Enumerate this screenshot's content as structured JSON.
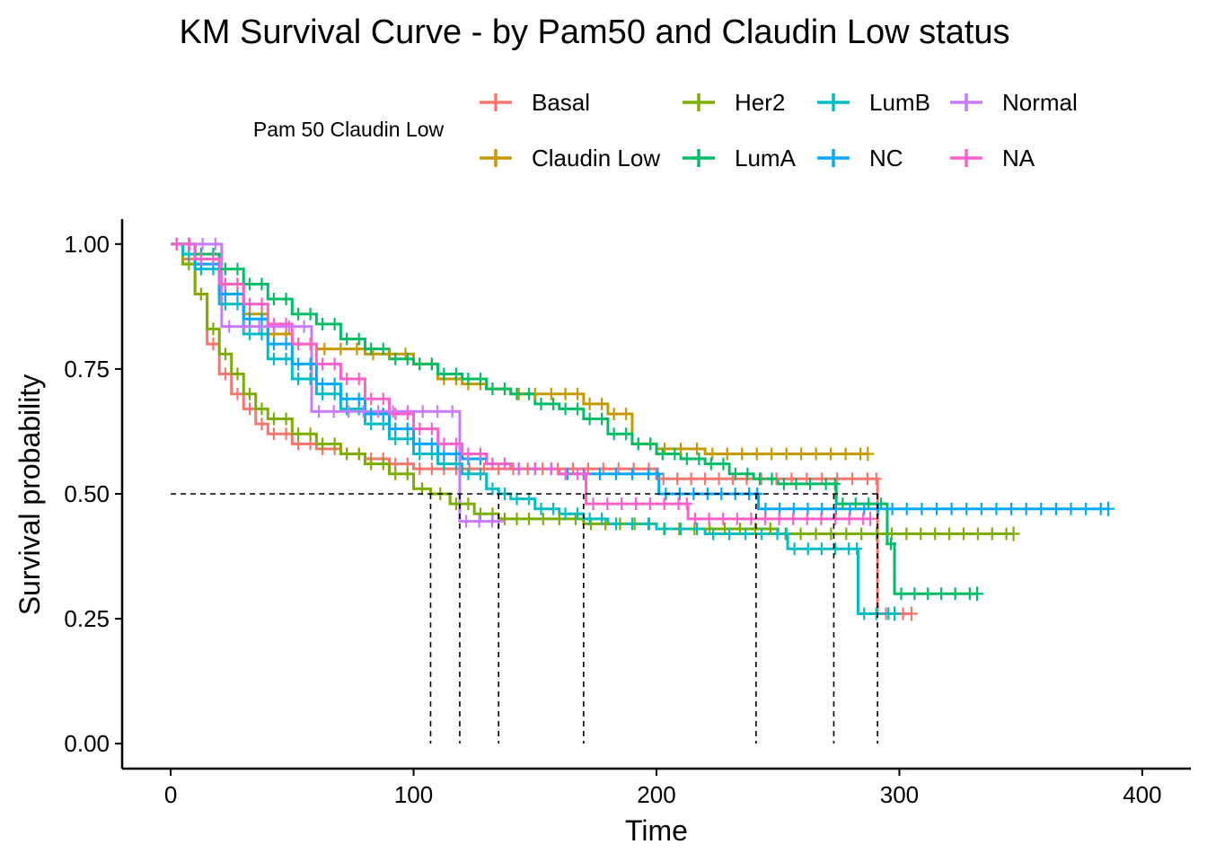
{
  "chart_data": {
    "type": "line",
    "subtype": "kaplan-meier step curves with censor marks",
    "title": "KM Survival Curve - by Pam50 and Claudin Low status",
    "xlabel": "Time",
    "ylabel": "Survival probability",
    "xlim": [
      -20,
      420
    ],
    "ylim": [
      -0.05,
      1.05
    ],
    "x_ticks": [
      0,
      100,
      200,
      300,
      400
    ],
    "y_ticks": [
      0.0,
      0.25,
      0.5,
      0.75,
      1.0
    ],
    "y_tick_labels": [
      "0.00",
      "0.25",
      "0.50",
      "0.75",
      "1.00"
    ],
    "grid": false,
    "legend": {
      "title": "Pam 50 Claudin Low",
      "placement": "top",
      "rows": 2
    },
    "median_line": {
      "y": 0.5,
      "x_end": 291,
      "medians": [
        107,
        119,
        135,
        170,
        241,
        273,
        291
      ]
    },
    "series": [
      {
        "name": "Basal",
        "color": "#F8766D",
        "points": [
          [
            0,
            1.0
          ],
          [
            5,
            0.97
          ],
          [
            10,
            0.9
          ],
          [
            15,
            0.8
          ],
          [
            20,
            0.74
          ],
          [
            25,
            0.7
          ],
          [
            30,
            0.67
          ],
          [
            35,
            0.64
          ],
          [
            40,
            0.62
          ],
          [
            50,
            0.6
          ],
          [
            60,
            0.59
          ],
          [
            70,
            0.58
          ],
          [
            80,
            0.57
          ],
          [
            90,
            0.56
          ],
          [
            100,
            0.55
          ],
          [
            110,
            0.55
          ],
          [
            120,
            0.55
          ],
          [
            150,
            0.55
          ],
          [
            200,
            0.53
          ],
          [
            240,
            0.53
          ],
          [
            290,
            0.53
          ],
          [
            291,
            0.26
          ],
          [
            305,
            0.26
          ]
        ]
      },
      {
        "name": "Claudin Low",
        "color": "#C49A00",
        "points": [
          [
            0,
            1.0
          ],
          [
            10,
            0.97
          ],
          [
            20,
            0.92
          ],
          [
            30,
            0.86
          ],
          [
            40,
            0.82
          ],
          [
            50,
            0.8
          ],
          [
            60,
            0.79
          ],
          [
            80,
            0.78
          ],
          [
            100,
            0.76
          ],
          [
            110,
            0.73
          ],
          [
            120,
            0.72
          ],
          [
            130,
            0.71
          ],
          [
            140,
            0.7
          ],
          [
            160,
            0.7
          ],
          [
            170,
            0.68
          ],
          [
            180,
            0.66
          ],
          [
            190,
            0.6
          ],
          [
            200,
            0.59
          ],
          [
            220,
            0.58
          ],
          [
            287,
            0.58
          ]
        ]
      },
      {
        "name": "Her2",
        "color": "#7CAE00",
        "points": [
          [
            0,
            1.0
          ],
          [
            5,
            0.96
          ],
          [
            10,
            0.9
          ],
          [
            15,
            0.83
          ],
          [
            20,
            0.78
          ],
          [
            25,
            0.74
          ],
          [
            30,
            0.7
          ],
          [
            35,
            0.67
          ],
          [
            40,
            0.65
          ],
          [
            50,
            0.62
          ],
          [
            60,
            0.6
          ],
          [
            70,
            0.58
          ],
          [
            80,
            0.56
          ],
          [
            90,
            0.54
          ],
          [
            100,
            0.51
          ],
          [
            107,
            0.5
          ],
          [
            115,
            0.48
          ],
          [
            125,
            0.46
          ],
          [
            135,
            0.45
          ],
          [
            150,
            0.45
          ],
          [
            170,
            0.44
          ],
          [
            200,
            0.43
          ],
          [
            250,
            0.42
          ],
          [
            300,
            0.42
          ],
          [
            347,
            0.42
          ]
        ]
      },
      {
        "name": "LumA",
        "color": "#00BE67",
        "points": [
          [
            0,
            1.0
          ],
          [
            10,
            0.98
          ],
          [
            20,
            0.95
          ],
          [
            30,
            0.92
          ],
          [
            40,
            0.89
          ],
          [
            50,
            0.86
          ],
          [
            60,
            0.84
          ],
          [
            70,
            0.81
          ],
          [
            80,
            0.79
          ],
          [
            90,
            0.77
          ],
          [
            100,
            0.76
          ],
          [
            110,
            0.74
          ],
          [
            120,
            0.73
          ],
          [
            130,
            0.71
          ],
          [
            140,
            0.7
          ],
          [
            150,
            0.68
          ],
          [
            160,
            0.67
          ],
          [
            170,
            0.65
          ],
          [
            180,
            0.62
          ],
          [
            190,
            0.6
          ],
          [
            200,
            0.58
          ],
          [
            210,
            0.57
          ],
          [
            220,
            0.56
          ],
          [
            230,
            0.54
          ],
          [
            240,
            0.53
          ],
          [
            250,
            0.52
          ],
          [
            260,
            0.52
          ],
          [
            273,
            0.52
          ],
          [
            274,
            0.48
          ],
          [
            290,
            0.48
          ],
          [
            295,
            0.4
          ],
          [
            298,
            0.3
          ],
          [
            320,
            0.3
          ],
          [
            332,
            0.3
          ]
        ]
      },
      {
        "name": "LumB",
        "color": "#00BFC4",
        "points": [
          [
            0,
            1.0
          ],
          [
            5,
            0.98
          ],
          [
            10,
            0.95
          ],
          [
            20,
            0.88
          ],
          [
            30,
            0.82
          ],
          [
            40,
            0.77
          ],
          [
            50,
            0.73
          ],
          [
            60,
            0.7
          ],
          [
            70,
            0.67
          ],
          [
            80,
            0.64
          ],
          [
            90,
            0.61
          ],
          [
            100,
            0.58
          ],
          [
            110,
            0.56
          ],
          [
            120,
            0.54
          ],
          [
            130,
            0.51
          ],
          [
            135,
            0.5
          ],
          [
            140,
            0.49
          ],
          [
            150,
            0.47
          ],
          [
            160,
            0.46
          ],
          [
            170,
            0.45
          ],
          [
            180,
            0.44
          ],
          [
            200,
            0.43
          ],
          [
            220,
            0.42
          ],
          [
            240,
            0.42
          ],
          [
            253,
            0.42
          ],
          [
            254,
            0.39
          ],
          [
            282,
            0.39
          ],
          [
            283,
            0.26
          ],
          [
            298,
            0.26
          ]
        ]
      },
      {
        "name": "NC",
        "color": "#00A9FF",
        "points": [
          [
            0,
            1.0
          ],
          [
            10,
            0.96
          ],
          [
            20,
            0.9
          ],
          [
            30,
            0.85
          ],
          [
            40,
            0.8
          ],
          [
            50,
            0.76
          ],
          [
            60,
            0.72
          ],
          [
            70,
            0.69
          ],
          [
            80,
            0.66
          ],
          [
            90,
            0.63
          ],
          [
            100,
            0.6
          ],
          [
            110,
            0.58
          ],
          [
            120,
            0.57
          ],
          [
            130,
            0.56
          ],
          [
            140,
            0.55
          ],
          [
            160,
            0.54
          ],
          [
            180,
            0.54
          ],
          [
            200,
            0.54
          ],
          [
            201,
            0.5
          ],
          [
            241,
            0.5
          ],
          [
            242,
            0.47
          ],
          [
            300,
            0.47
          ],
          [
            386,
            0.47
          ]
        ]
      },
      {
        "name": "Normal",
        "color": "#C77CFF",
        "points": [
          [
            0,
            1.0
          ],
          [
            21,
            1.0
          ],
          [
            21,
            0.835
          ],
          [
            58,
            0.835
          ],
          [
            58,
            0.665
          ],
          [
            119,
            0.665
          ],
          [
            119,
            0.445
          ],
          [
            135,
            0.445
          ]
        ]
      },
      {
        "name": "NA",
        "color": "#FF61CC",
        "points": [
          [
            0,
            1.0
          ],
          [
            10,
            0.97
          ],
          [
            20,
            0.92
          ],
          [
            30,
            0.88
          ],
          [
            40,
            0.84
          ],
          [
            50,
            0.8
          ],
          [
            60,
            0.76
          ],
          [
            70,
            0.73
          ],
          [
            80,
            0.69
          ],
          [
            90,
            0.66
          ],
          [
            100,
            0.63
          ],
          [
            110,
            0.6
          ],
          [
            120,
            0.58
          ],
          [
            130,
            0.56
          ],
          [
            140,
            0.55
          ],
          [
            160,
            0.54
          ],
          [
            170,
            0.54
          ],
          [
            171,
            0.48
          ],
          [
            212,
            0.48
          ],
          [
            213,
            0.45
          ],
          [
            288,
            0.45
          ]
        ]
      }
    ]
  }
}
